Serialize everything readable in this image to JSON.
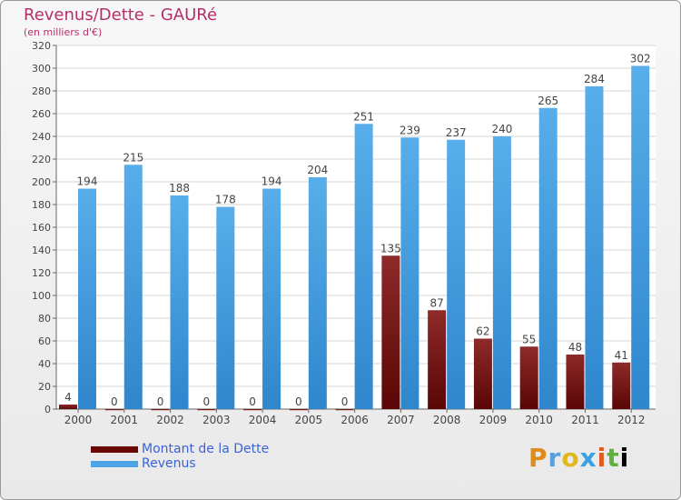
{
  "chart_data": {
    "type": "bar",
    "title": "Revenus/Dette - GAURé",
    "subtitle": "(en milliers d'€)",
    "categories": [
      "2000",
      "2001",
      "2002",
      "2003",
      "2004",
      "2005",
      "2006",
      "2007",
      "2008",
      "2009",
      "2010",
      "2011",
      "2012"
    ],
    "series": [
      {
        "name": "Montant de la Dette",
        "color": "#7a0c0c",
        "values": [
          4,
          0,
          0,
          0,
          0,
          0,
          0,
          135,
          87,
          62,
          55,
          48,
          41
        ]
      },
      {
        "name": "Revenus",
        "color": "#4ea4e4",
        "values": [
          194,
          215,
          188,
          178,
          194,
          204,
          251,
          239,
          237,
          240,
          265,
          284,
          302
        ]
      }
    ],
    "ylim": [
      0,
      320
    ],
    "yticks": [
      0,
      20,
      40,
      60,
      80,
      100,
      120,
      140,
      160,
      180,
      200,
      220,
      240,
      260,
      280,
      300,
      320
    ],
    "grid": true,
    "legend": "bottom-left"
  },
  "brand": {
    "letters": [
      "P",
      "r",
      "o",
      "x",
      "i",
      "t",
      "i"
    ]
  }
}
